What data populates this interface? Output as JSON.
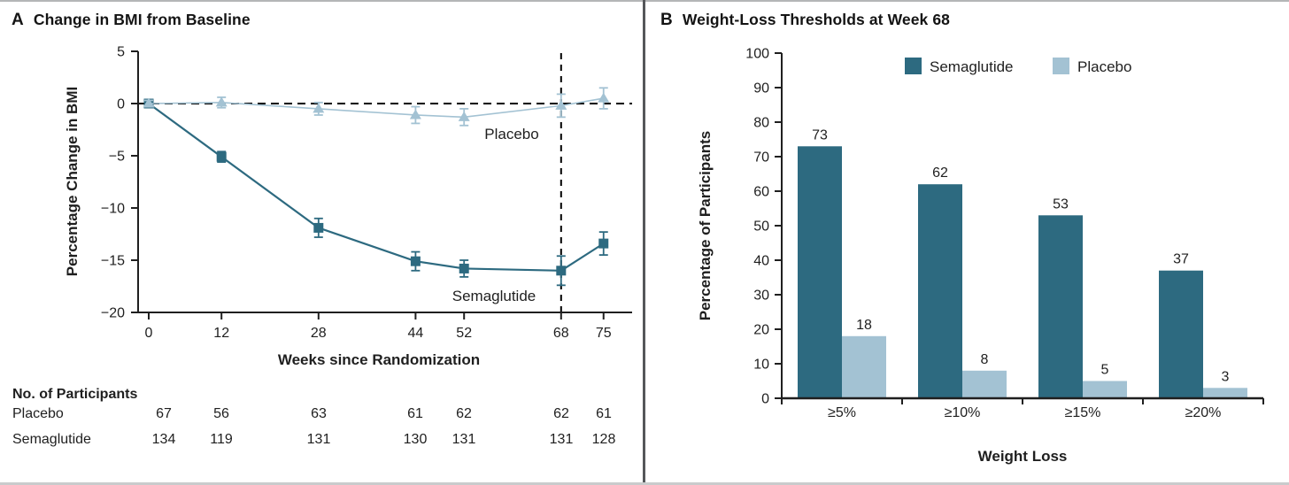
{
  "colors": {
    "semaglutide": "#2D6A80",
    "placebo": "#A3C2D3",
    "ink": "#1f1f1f",
    "reference_line": "#000000",
    "divider": "#55575a",
    "top_border": "#b4b6b7",
    "bottom_border": "#c9cbcc"
  },
  "panelA": {
    "letter": "A",
    "title": "Change in BMI from Baseline",
    "participants": {
      "heading": "No. of Participants",
      "rows": [
        {
          "label": "Placebo",
          "values": [
            "67",
            "56",
            "63",
            "61",
            "62",
            "62",
            "61"
          ]
        },
        {
          "label": "Semaglutide",
          "values": [
            "134",
            "119",
            "131",
            "130",
            "131",
            "131",
            "128"
          ]
        }
      ]
    }
  },
  "panelB": {
    "letter": "B",
    "title": "Weight-Loss Thresholds at Week 68"
  },
  "chart_data": [
    {
      "type": "line",
      "title": "Change in BMI from Baseline",
      "xlabel": "Weeks since Randomization",
      "ylabel": "Percentage Change in BMI",
      "x": [
        0,
        12,
        28,
        44,
        52,
        68,
        75
      ],
      "xticks": [
        0,
        12,
        28,
        44,
        52,
        68,
        75
      ],
      "yticks": [
        5,
        0,
        -5,
        -10,
        -15,
        -20
      ],
      "ylim": [
        -20,
        5
      ],
      "grid": false,
      "reference_lines": {
        "horizontal_y": 0,
        "vertical_x": 68,
        "style": "dashed"
      },
      "series": [
        {
          "name": "Semaglutide",
          "marker": "square",
          "color": "#2D6A80",
          "values": [
            0,
            -5.1,
            -11.9,
            -15.1,
            -15.8,
            -16.0,
            -13.4
          ],
          "errors": [
            0.3,
            0.5,
            0.9,
            0.9,
            0.8,
            1.4,
            1.1
          ]
        },
        {
          "name": "Placebo",
          "marker": "triangle",
          "color": "#A3C2D3",
          "values": [
            0,
            0.1,
            -0.5,
            -1.1,
            -1.3,
            -0.2,
            0.5
          ],
          "errors": [
            0.3,
            0.5,
            0.6,
            0.8,
            0.8,
            1.1,
            1.0
          ]
        }
      ]
    },
    {
      "type": "bar",
      "title": "Weight-Loss Thresholds at Week 68",
      "xlabel": "Weight Loss",
      "ylabel": "Percentage of Participants",
      "categories": [
        "≥5%",
        "≥10%",
        "≥15%",
        "≥20%"
      ],
      "ylim": [
        0,
        100
      ],
      "yticks": [
        100,
        90,
        80,
        70,
        60,
        50,
        40,
        30,
        20,
        10,
        0
      ],
      "grid": false,
      "legend_position": "top",
      "series": [
        {
          "name": "Semaglutide",
          "color": "#2D6A80",
          "values": [
            73,
            62,
            53,
            37
          ]
        },
        {
          "name": "Placebo",
          "color": "#A3C2D3",
          "values": [
            18,
            8,
            5,
            3
          ]
        }
      ]
    }
  ]
}
